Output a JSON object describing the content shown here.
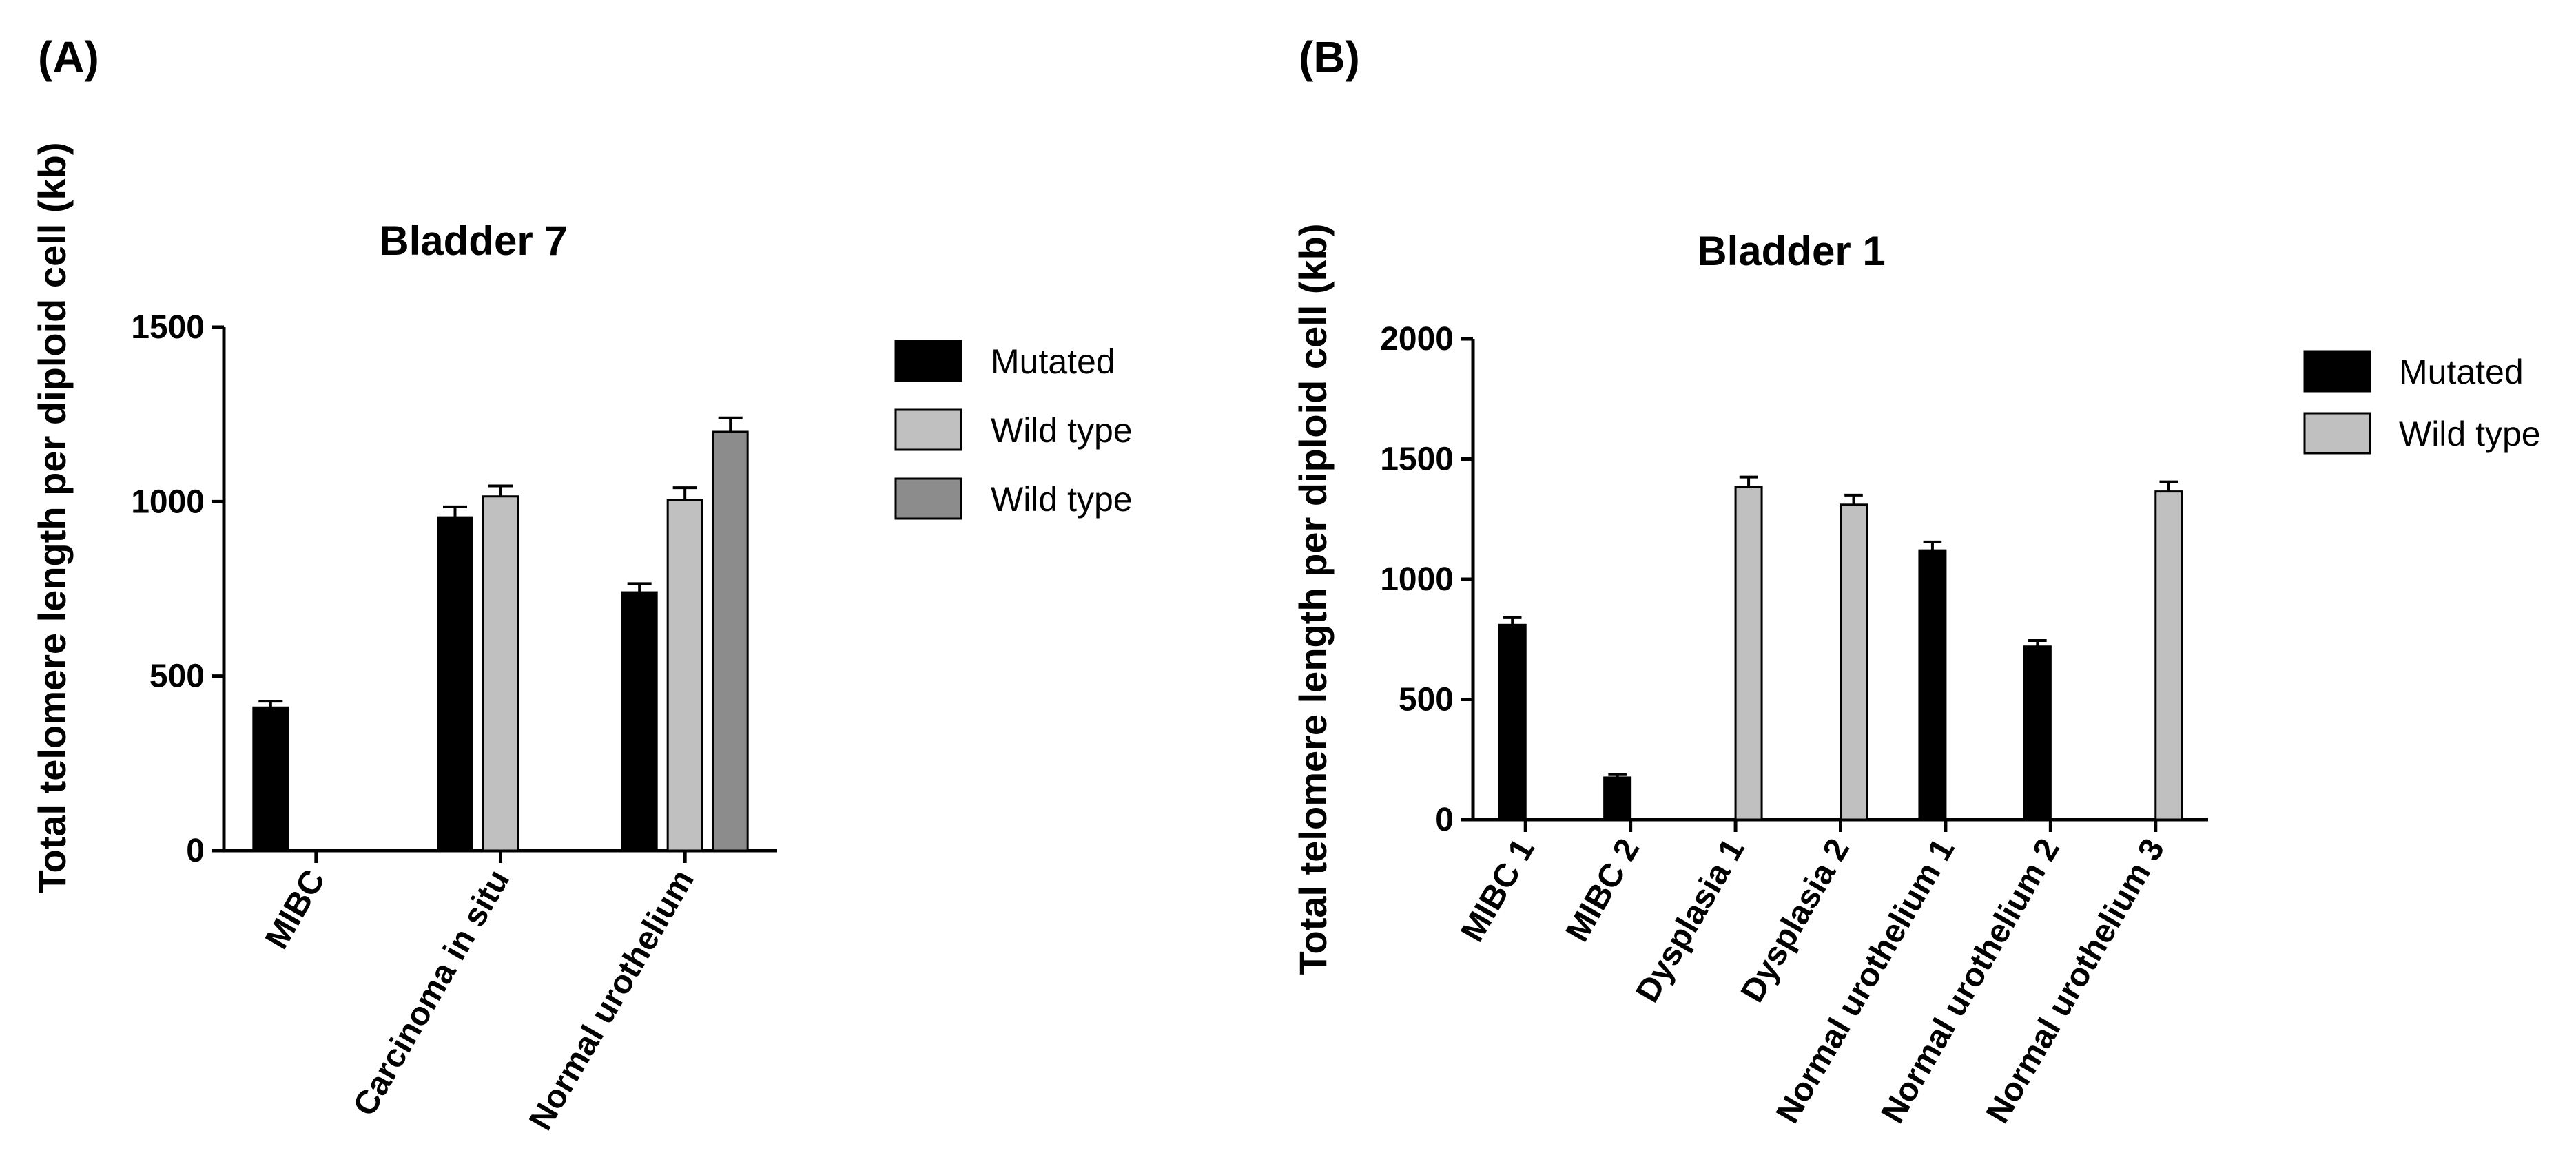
{
  "colors": {
    "mutated": "#000000",
    "wild_type_light": "#c0c0c0",
    "wild_type_dark": "#8c8c8c",
    "axis": "#000000"
  },
  "chart_data": [
    {
      "panel_label": "(A)",
      "type": "bar",
      "title": "Bladder 7",
      "xlabel": "",
      "ylabel": "Total telomere length per diploid cell (kb)",
      "ylim": [
        0,
        1500
      ],
      "yticks": [
        0,
        500,
        1000,
        1500
      ],
      "categories": [
        "MIBC",
        "Carcinoma in situ",
        "Normal urothelium"
      ],
      "series": [
        {
          "name": "Mutated",
          "color": "#000000",
          "values": [
            410,
            955,
            740
          ],
          "errors": [
            18,
            30,
            25
          ]
        },
        {
          "name": "Wild type",
          "color": "#c0c0c0",
          "values": [
            0,
            1015,
            1005
          ],
          "errors": [
            0,
            30,
            35
          ]
        },
        {
          "name": "Wild type",
          "color": "#8c8c8c",
          "values": [
            0,
            0,
            1200
          ],
          "errors": [
            0,
            0,
            40
          ]
        }
      ],
      "legend_position": "right"
    },
    {
      "panel_label": "(B)",
      "type": "bar",
      "title": "Bladder 1",
      "xlabel": "",
      "ylabel": "Total telomere length per diploid cell (kb)",
      "ylim": [
        0,
        2000
      ],
      "yticks": [
        0,
        500,
        1000,
        1500,
        2000
      ],
      "categories": [
        "MIBC 1",
        "MIBC 2",
        "Dysplasia 1",
        "Dysplasia 2",
        "Normal urothelium 1",
        "Normal urothelium 2",
        "Normal urothelium 3"
      ],
      "series": [
        {
          "name": "Mutated",
          "color": "#000000",
          "values": [
            810,
            175,
            0,
            0,
            1120,
            720,
            0
          ],
          "errors": [
            30,
            12,
            0,
            0,
            35,
            25,
            0
          ]
        },
        {
          "name": "Wild type",
          "color": "#c0c0c0",
          "values": [
            0,
            0,
            1385,
            1310,
            0,
            0,
            1365
          ],
          "errors": [
            0,
            0,
            40,
            40,
            0,
            0,
            40
          ]
        }
      ],
      "legend_position": "right"
    }
  ]
}
